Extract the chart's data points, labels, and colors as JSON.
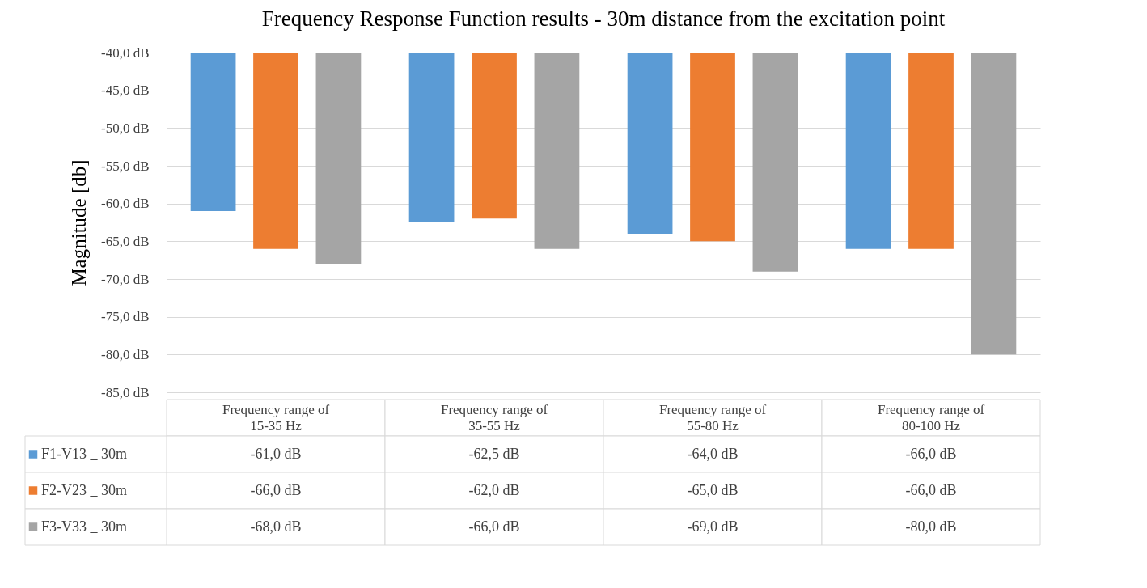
{
  "chart_data": {
    "type": "bar",
    "title": "Frequency Response Function results - 30m distance from the excitation point",
    "ylabel": "Magnitude [db]",
    "categories": [
      "Frequency range of 15-35 Hz",
      "Frequency range of 35-55 Hz",
      "Frequency range of 55-80 Hz",
      "Frequency range of 80-100 Hz"
    ],
    "series": [
      {
        "name": "F1-V13 _ 30m",
        "color": "#5b9bd5",
        "values": [
          -61.0,
          -62.5,
          -64.0,
          -66.0
        ],
        "value_labels": [
          "-61,0 dB",
          "-62,5 dB",
          "-64,0 dB",
          "-66,0 dB"
        ]
      },
      {
        "name": "F2-V23 _ 30m",
        "color": "#ed7d31",
        "values": [
          -66.0,
          -62.0,
          -65.0,
          -66.0
        ],
        "value_labels": [
          "-66,0 dB",
          "-62,0 dB",
          "-65,0 dB",
          "-66,0 dB"
        ]
      },
      {
        "name": "F3-V33 _ 30m",
        "color": "#a5a5a5",
        "values": [
          -68.0,
          -66.0,
          -69.0,
          -80.0
        ],
        "value_labels": [
          "-68,0 dB",
          "-66,0 dB",
          "-69,0 dB",
          "-80,0 dB"
        ]
      }
    ],
    "ylim": [
      -85,
      -40
    ],
    "yticks": [
      {
        "value": -85,
        "label": "-85,0 dB"
      },
      {
        "value": -80,
        "label": "-80,0 dB"
      },
      {
        "value": -75,
        "label": "-75,0 dB"
      },
      {
        "value": -70,
        "label": "-70,0 dB"
      },
      {
        "value": -65,
        "label": "-65,0 dB"
      },
      {
        "value": -60,
        "label": "-60,0 dB"
      },
      {
        "value": -55,
        "label": "-55,0 dB"
      },
      {
        "value": -50,
        "label": "-50,0 dB"
      },
      {
        "value": -45,
        "label": "-45,0 dB"
      },
      {
        "value": -40,
        "label": "-40,0 dB"
      }
    ],
    "grid": "y",
    "legend": "bottom left"
  }
}
